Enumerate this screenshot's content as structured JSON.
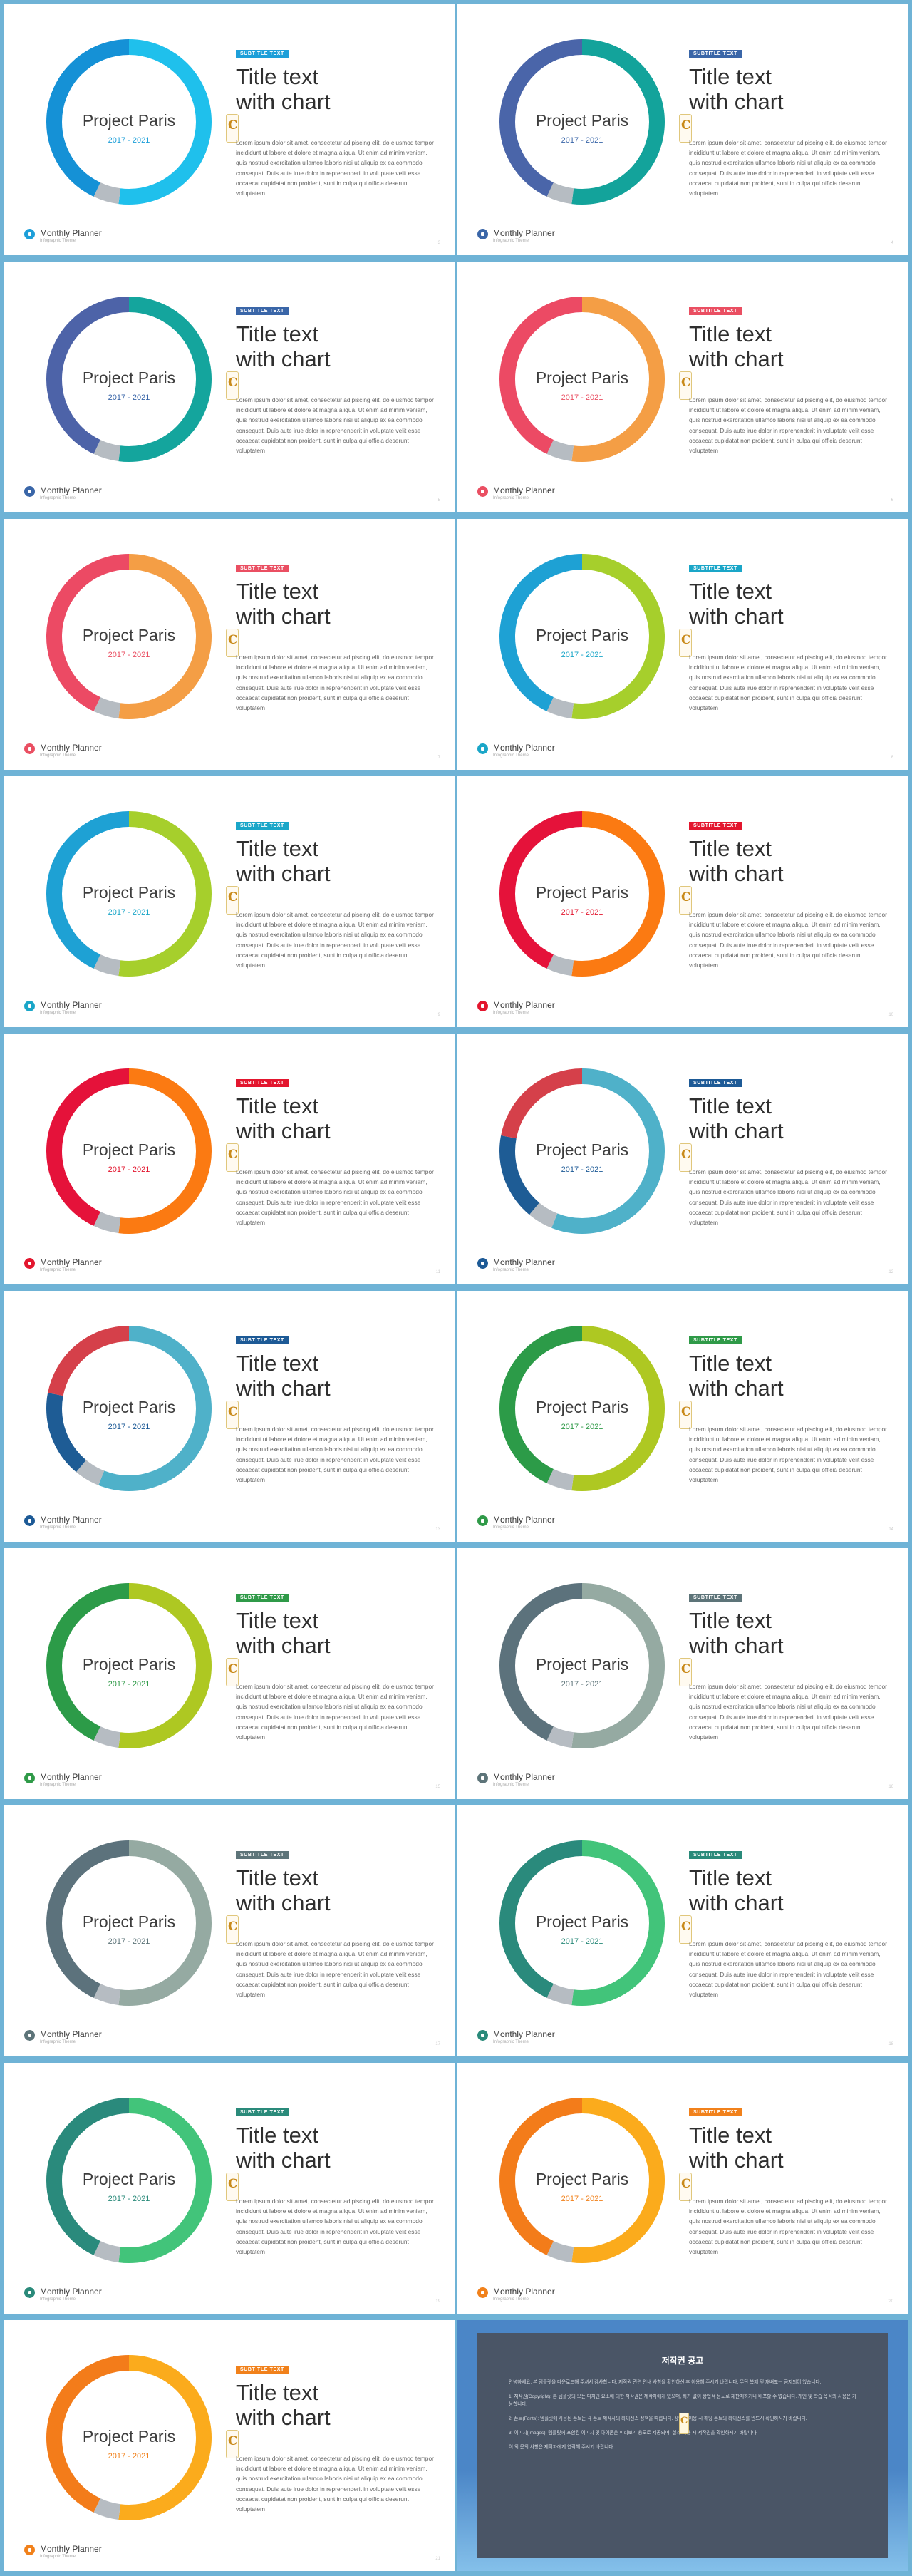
{
  "slides": [
    {
      "page": "3",
      "title_line1": "Title text",
      "title_line2": "with chart",
      "badge": "SUBTITLE TEXT",
      "donut_title": "Project Paris",
      "years": "2017 - 2021",
      "body": "Lorem ipsum dolor sit amet, consectetur adipiscing elit, do eiusmod tempor incididunt ut labore et dolore et magna aliqua. Ut enim ad minim veniam, quis nostrud exercitation ullamco laboris nisi ut aliquip ex ea commodo consequat. Duis aute irue dolor in reprehenderit in voluptate velit esse occaecat cupidatat non proident, sunt in culpa qui officia deserunt voluptatem",
      "footer_name": "Monthly Planner",
      "footer_sub": "Infographic Theme",
      "accent": "#1d9fd9",
      "segments": [
        {
          "frac": 0.52,
          "color": "#1fc0ec"
        },
        {
          "frac": 0.05,
          "color": "#b6bcc2"
        },
        {
          "frac": 0.43,
          "color": "#1591d6"
        }
      ]
    },
    {
      "page": "4",
      "title_line1": "Title text",
      "title_line2": "with chart",
      "badge": "SUBTITLE TEXT",
      "donut_title": "Project Paris",
      "years": "2017 - 2021",
      "body": "Lorem ipsum dolor sit amet, consectetur adipiscing elit, do eiusmod tempor incididunt ut labore et dolore et magna aliqua. Ut enim ad minim veniam, quis nostrud exercitation ullamco laboris nisi ut aliquip ex ea commodo consequat. Duis aute irue dolor in reprehenderit in voluptate velit esse occaecat cupidatat non proident, sunt in culpa qui officia deserunt voluptatem",
      "footer_name": "Monthly Planner",
      "footer_sub": "Infographic Theme",
      "accent": "#3a66a8",
      "segments": [
        {
          "frac": 0.52,
          "color": "#13a39b"
        },
        {
          "frac": 0.05,
          "color": "#b6bcc2"
        },
        {
          "frac": 0.43,
          "color": "#4a65a9"
        }
      ]
    },
    {
      "page": "5",
      "title_line1": "Title text",
      "title_line2": "with chart",
      "badge": "SUBTITLE TEXT",
      "donut_title": "Project Paris",
      "years": "2017 - 2021",
      "body": "Lorem ipsum dolor sit amet, consectetur adipiscing elit, do eiusmod tempor incididunt ut labore et dolore et magna aliqua. Ut enim ad minim veniam, quis nostrud exercitation ullamco laboris nisi ut aliquip ex ea commodo consequat. Duis aute irue dolor in reprehenderit in voluptate velit esse occaecat cupidatat non proident, sunt in culpa qui officia deserunt voluptatem",
      "footer_name": "Monthly Planner",
      "footer_sub": "Infographic Theme",
      "accent": "#3a66a8",
      "segments": [
        {
          "frac": 0.52,
          "color": "#14a59d"
        },
        {
          "frac": 0.05,
          "color": "#b6bcc2"
        },
        {
          "frac": 0.43,
          "color": "#4d63a8"
        }
      ]
    },
    {
      "page": "6",
      "title_line1": "Title text",
      "title_line2": "with chart",
      "badge": "SUBTITLE TEXT",
      "donut_title": "Project Paris",
      "years": "2017 - 2021",
      "body": "Lorem ipsum dolor sit amet, consectetur adipiscing elit, do eiusmod tempor incididunt ut labore et dolore et magna aliqua. Ut enim ad minim veniam, quis nostrud exercitation ullamco laboris nisi ut aliquip ex ea commodo consequat. Duis aute irue dolor in reprehenderit in voluptate velit esse occaecat cupidatat non proident, sunt in culpa qui officia deserunt voluptatem",
      "footer_name": "Monthly Planner",
      "footer_sub": "Infographic Theme",
      "accent": "#ea4f62",
      "segments": [
        {
          "frac": 0.52,
          "color": "#f49e45"
        },
        {
          "frac": 0.05,
          "color": "#b6bcc2"
        },
        {
          "frac": 0.43,
          "color": "#ec4a64"
        }
      ]
    },
    {
      "page": "7",
      "title_line1": "Title text",
      "title_line2": "with chart",
      "badge": "SUBTITLE TEXT",
      "donut_title": "Project Paris",
      "years": "2017 - 2021",
      "body": "Lorem ipsum dolor sit amet, consectetur adipiscing elit, do eiusmod tempor incididunt ut labore et dolore et magna aliqua. Ut enim ad minim veniam, quis nostrud exercitation ullamco laboris nisi ut aliquip ex ea commodo consequat. Duis aute irue dolor in reprehenderit in voluptate velit esse occaecat cupidatat non proident, sunt in culpa qui officia deserunt voluptatem",
      "footer_name": "Monthly Planner",
      "footer_sub": "Infographic Theme",
      "accent": "#ea4f62",
      "segments": [
        {
          "frac": 0.52,
          "color": "#f49e45"
        },
        {
          "frac": 0.05,
          "color": "#b6bcc2"
        },
        {
          "frac": 0.43,
          "color": "#ec4a64"
        }
      ]
    },
    {
      "page": "8",
      "title_line1": "Title text",
      "title_line2": "with chart",
      "badge": "SUBTITLE TEXT",
      "donut_title": "Project Paris",
      "years": "2017 - 2021",
      "body": "Lorem ipsum dolor sit amet, consectetur adipiscing elit, do eiusmod tempor incididunt ut labore et dolore et magna aliqua. Ut enim ad minim veniam, quis nostrud exercitation ullamco laboris nisi ut aliquip ex ea commodo consequat. Duis aute irue dolor in reprehenderit in voluptate velit esse occaecat cupidatat non proident, sunt in culpa qui officia deserunt voluptatem",
      "footer_name": "Monthly Planner",
      "footer_sub": "Infographic Theme",
      "accent": "#1aa6c8",
      "segments": [
        {
          "frac": 0.52,
          "color": "#a6cf2c"
        },
        {
          "frac": 0.05,
          "color": "#b6bcc2"
        },
        {
          "frac": 0.43,
          "color": "#1ea1d4"
        }
      ]
    },
    {
      "page": "9",
      "title_line1": "Title text",
      "title_line2": "with chart",
      "badge": "SUBTITLE TEXT",
      "donut_title": "Project Paris",
      "years": "2017 - 2021",
      "body": "Lorem ipsum dolor sit amet, consectetur adipiscing elit, do eiusmod tempor incididunt ut labore et dolore et magna aliqua. Ut enim ad minim veniam, quis nostrud exercitation ullamco laboris nisi ut aliquip ex ea commodo consequat. Duis aute irue dolor in reprehenderit in voluptate velit esse occaecat cupidatat non proident, sunt in culpa qui officia deserunt voluptatem",
      "footer_name": "Monthly Planner",
      "footer_sub": "Infographic Theme",
      "accent": "#1aa6c8",
      "segments": [
        {
          "frac": 0.52,
          "color": "#a6cf2c"
        },
        {
          "frac": 0.05,
          "color": "#b6bcc2"
        },
        {
          "frac": 0.43,
          "color": "#1ea1d4"
        }
      ]
    },
    {
      "page": "10",
      "title_line1": "Title text",
      "title_line2": "with chart",
      "badge": "SUBTITLE TEXT",
      "donut_title": "Project Paris",
      "years": "2017 - 2021",
      "body": "Lorem ipsum dolor sit amet, consectetur adipiscing elit, do eiusmod tempor incididunt ut labore et dolore et magna aliqua. Ut enim ad minim veniam, quis nostrud exercitation ullamco laboris nisi ut aliquip ex ea commodo consequat. Duis aute irue dolor in reprehenderit in voluptate velit esse occaecat cupidatat non proident, sunt in culpa qui officia deserunt voluptatem",
      "footer_name": "Monthly Planner",
      "footer_sub": "Infographic Theme",
      "accent": "#e3162e",
      "segments": [
        {
          "frac": 0.52,
          "color": "#fb7a12"
        },
        {
          "frac": 0.05,
          "color": "#b6bcc2"
        },
        {
          "frac": 0.43,
          "color": "#e5123a"
        }
      ]
    },
    {
      "page": "11",
      "title_line1": "Title text",
      "title_line2": "with chart",
      "badge": "SUBTITLE TEXT",
      "donut_title": "Project Paris",
      "years": "2017 - 2021",
      "body": "Lorem ipsum dolor sit amet, consectetur adipiscing elit, do eiusmod tempor incididunt ut labore et dolore et magna aliqua. Ut enim ad minim veniam, quis nostrud exercitation ullamco laboris nisi ut aliquip ex ea commodo consequat. Duis aute irue dolor in reprehenderit in voluptate velit esse occaecat cupidatat non proident, sunt in culpa qui officia deserunt voluptatem",
      "footer_name": "Monthly Planner",
      "footer_sub": "Infographic Theme",
      "accent": "#e3162e",
      "segments": [
        {
          "frac": 0.52,
          "color": "#fb7a12"
        },
        {
          "frac": 0.05,
          "color": "#b6bcc2"
        },
        {
          "frac": 0.43,
          "color": "#e5123a"
        }
      ]
    },
    {
      "page": "12",
      "title_line1": "Title text",
      "title_line2": "with chart",
      "badge": "SUBTITLE TEXT",
      "donut_title": "Project Paris",
      "years": "2017 - 2021",
      "body": "Lorem ipsum dolor sit amet, consectetur adipiscing elit, do eiusmod tempor incididunt ut labore et dolore et magna aliqua. Ut enim ad minim veniam, quis nostrud exercitation ullamco laboris nisi ut aliquip ex ea commodo consequat. Duis aute irue dolor in reprehenderit in voluptate velit esse occaecat cupidatat non proident, sunt in culpa qui officia deserunt voluptatem",
      "footer_name": "Monthly Planner",
      "footer_sub": "Infographic Theme",
      "accent": "#1d5a96",
      "segments": [
        {
          "frac": 0.56,
          "color": "#4fb1c9"
        },
        {
          "frac": 0.05,
          "color": "#b6bcc2"
        },
        {
          "frac": 0.17,
          "color": "#1e5c95"
        },
        {
          "frac": 0.22,
          "color": "#d5404a"
        }
      ]
    },
    {
      "page": "13",
      "title_line1": "Title text",
      "title_line2": "with chart",
      "badge": "SUBTITLE TEXT",
      "donut_title": "Project Paris",
      "years": "2017 - 2021",
      "body": "Lorem ipsum dolor sit amet, consectetur adipiscing elit, do eiusmod tempor incididunt ut labore et dolore et magna aliqua. Ut enim ad minim veniam, quis nostrud exercitation ullamco laboris nisi ut aliquip ex ea commodo consequat. Duis aute irue dolor in reprehenderit in voluptate velit esse occaecat cupidatat non proident, sunt in culpa qui officia deserunt voluptatem",
      "footer_name": "Monthly Planner",
      "footer_sub": "Infographic Theme",
      "accent": "#1d5a96",
      "segments": [
        {
          "frac": 0.56,
          "color": "#4fb1c9"
        },
        {
          "frac": 0.05,
          "color": "#b6bcc2"
        },
        {
          "frac": 0.17,
          "color": "#1e5c95"
        },
        {
          "frac": 0.22,
          "color": "#d5404a"
        }
      ]
    },
    {
      "page": "14",
      "title_line1": "Title text",
      "title_line2": "with chart",
      "badge": "SUBTITLE TEXT",
      "donut_title": "Project Paris",
      "years": "2017 - 2021",
      "body": "Lorem ipsum dolor sit amet, consectetur adipiscing elit, do eiusmod tempor incididunt ut labore et dolore et magna aliqua. Ut enim ad minim veniam, quis nostrud exercitation ullamco laboris nisi ut aliquip ex ea commodo consequat. Duis aute irue dolor in reprehenderit in voluptate velit esse occaecat cupidatat non proident, sunt in culpa qui officia deserunt voluptatem",
      "footer_name": "Monthly Planner",
      "footer_sub": "Infographic Theme",
      "accent": "#2f9a48",
      "segments": [
        {
          "frac": 0.52,
          "color": "#aec822"
        },
        {
          "frac": 0.05,
          "color": "#b6bcc2"
        },
        {
          "frac": 0.43,
          "color": "#2c9b48"
        }
      ]
    },
    {
      "page": "15",
      "title_line1": "Title text",
      "title_line2": "with chart",
      "badge": "SUBTITLE TEXT",
      "donut_title": "Project Paris",
      "years": "2017 - 2021",
      "body": "Lorem ipsum dolor sit amet, consectetur adipiscing elit, do eiusmod tempor incididunt ut labore et dolore et magna aliqua. Ut enim ad minim veniam, quis nostrud exercitation ullamco laboris nisi ut aliquip ex ea commodo consequat. Duis aute irue dolor in reprehenderit in voluptate velit esse occaecat cupidatat non proident, sunt in culpa qui officia deserunt voluptatem",
      "footer_name": "Monthly Planner",
      "footer_sub": "Infographic Theme",
      "accent": "#2f9a48",
      "segments": [
        {
          "frac": 0.52,
          "color": "#aec822"
        },
        {
          "frac": 0.05,
          "color": "#b6bcc2"
        },
        {
          "frac": 0.43,
          "color": "#2c9b48"
        }
      ]
    },
    {
      "page": "16",
      "title_line1": "Title text",
      "title_line2": "with chart",
      "badge": "SUBTITLE TEXT",
      "donut_title": "Project Paris",
      "years": "2017 - 2021",
      "body": "Lorem ipsum dolor sit amet, consectetur adipiscing elit, do eiusmod tempor incididunt ut labore et dolore et magna aliqua. Ut enim ad minim veniam, quis nostrud exercitation ullamco laboris nisi ut aliquip ex ea commodo consequat. Duis aute irue dolor in reprehenderit in voluptate velit esse occaecat cupidatat non proident, sunt in culpa qui officia deserunt voluptatem",
      "footer_name": "Monthly Planner",
      "footer_sub": "Infographic Theme",
      "accent": "#5d7479",
      "segments": [
        {
          "frac": 0.52,
          "color": "#95aaa2"
        },
        {
          "frac": 0.05,
          "color": "#b6bcc2"
        },
        {
          "frac": 0.43,
          "color": "#5c727c"
        }
      ]
    },
    {
      "page": "17",
      "title_line1": "Title text",
      "title_line2": "with chart",
      "badge": "SUBTITLE TEXT",
      "donut_title": "Project Paris",
      "years": "2017 - 2021",
      "body": "Lorem ipsum dolor sit amet, consectetur adipiscing elit, do eiusmod tempor incididunt ut labore et dolore et magna aliqua. Ut enim ad minim veniam, quis nostrud exercitation ullamco laboris nisi ut aliquip ex ea commodo consequat. Duis aute irue dolor in reprehenderit in voluptate velit esse occaecat cupidatat non proident, sunt in culpa qui officia deserunt voluptatem",
      "footer_name": "Monthly Planner",
      "footer_sub": "Infographic Theme",
      "accent": "#5d7479",
      "segments": [
        {
          "frac": 0.52,
          "color": "#95aaa2"
        },
        {
          "frac": 0.05,
          "color": "#b6bcc2"
        },
        {
          "frac": 0.43,
          "color": "#5c727c"
        }
      ]
    },
    {
      "page": "18",
      "title_line1": "Title text",
      "title_line2": "with chart",
      "badge": "SUBTITLE TEXT",
      "donut_title": "Project Paris",
      "years": "2017 - 2021",
      "body": "Lorem ipsum dolor sit amet, consectetur adipiscing elit, do eiusmod tempor incididunt ut labore et dolore et magna aliqua. Ut enim ad minim veniam, quis nostrud exercitation ullamco laboris nisi ut aliquip ex ea commodo consequat. Duis aute irue dolor in reprehenderit in voluptate velit esse occaecat cupidatat non proident, sunt in culpa qui officia deserunt voluptatem",
      "footer_name": "Monthly Planner",
      "footer_sub": "Infographic Theme",
      "accent": "#2a8a7a",
      "segments": [
        {
          "frac": 0.52,
          "color": "#42c47a"
        },
        {
          "frac": 0.05,
          "color": "#b6bcc2"
        },
        {
          "frac": 0.43,
          "color": "#2a8a7c"
        }
      ]
    },
    {
      "page": "19",
      "title_line1": "Title text",
      "title_line2": "with chart",
      "badge": "SUBTITLE TEXT",
      "donut_title": "Project Paris",
      "years": "2017 - 2021",
      "body": "Lorem ipsum dolor sit amet, consectetur adipiscing elit, do eiusmod tempor incididunt ut labore et dolore et magna aliqua. Ut enim ad minim veniam, quis nostrud exercitation ullamco laboris nisi ut aliquip ex ea commodo consequat. Duis aute irue dolor in reprehenderit in voluptate velit esse occaecat cupidatat non proident, sunt in culpa qui officia deserunt voluptatem",
      "footer_name": "Monthly Planner",
      "footer_sub": "Infographic Theme",
      "accent": "#2a8a7a",
      "segments": [
        {
          "frac": 0.52,
          "color": "#42c47a"
        },
        {
          "frac": 0.05,
          "color": "#b6bcc2"
        },
        {
          "frac": 0.43,
          "color": "#2a8a7c"
        }
      ]
    },
    {
      "page": "20",
      "title_line1": "Title text",
      "title_line2": "with chart",
      "badge": "SUBTITLE TEXT",
      "donut_title": "Project Paris",
      "years": "2017 - 2021",
      "body": "Lorem ipsum dolor sit amet, consectetur adipiscing elit, do eiusmod tempor incididunt ut labore et dolore et magna aliqua. Ut enim ad minim veniam, quis nostrud exercitation ullamco laboris nisi ut aliquip ex ea commodo consequat. Duis aute irue dolor in reprehenderit in voluptate velit esse occaecat cupidatat non proident, sunt in culpa qui officia deserunt voluptatem",
      "footer_name": "Monthly Planner",
      "footer_sub": "Infographic Theme",
      "accent": "#f1811b",
      "segments": [
        {
          "frac": 0.52,
          "color": "#fbab1c"
        },
        {
          "frac": 0.05,
          "color": "#b6bcc2"
        },
        {
          "frac": 0.43,
          "color": "#f37c1a"
        }
      ]
    },
    {
      "page": "21",
      "title_line1": "Title text",
      "title_line2": "with chart",
      "badge": "SUBTITLE TEXT",
      "donut_title": "Project Paris",
      "years": "2017 - 2021",
      "body": "Lorem ipsum dolor sit amet, consectetur adipiscing elit, do eiusmod tempor incididunt ut labore et dolore et magna aliqua. Ut enim ad minim veniam, quis nostrud exercitation ullamco laboris nisi ut aliquip ex ea commodo consequat. Duis aute irue dolor in reprehenderit in voluptate velit esse occaecat cupidatat non proident, sunt in culpa qui officia deserunt voluptatem",
      "footer_name": "Monthly Planner",
      "footer_sub": "Infographic Theme",
      "accent": "#f1811b",
      "segments": [
        {
          "frac": 0.52,
          "color": "#fbab1c"
        },
        {
          "frac": 0.05,
          "color": "#b6bcc2"
        },
        {
          "frac": 0.43,
          "color": "#f37c1a"
        }
      ]
    }
  ],
  "notice": {
    "title": "저작권 공고",
    "paragraphs": [
      "안녕하세요. 본 템플릿을 다운로드해 주셔서 감사합니다. 저작권 관련 안내 사항을 확인하신 후 이용해 주시기 바랍니다. 무단 복제 및 재배포는 금지되어 있습니다.",
      "1. 저작권(Copyright): 본 템플릿의 모든 디자인 요소에 대한 저작권은 제작자에게 있으며, 허가 없이 상업적 용도로 재판매하거나 배포할 수 없습니다. 개인 및 학습 목적의 사용은 가능합니다.",
      "2. 폰트(Fonts): 템플릿에 사용된 폰트는 각 폰트 제작사의 라이선스 정책을 따릅니다. 상업적 이용 시 해당 폰트의 라이선스를 반드시 확인하시기 바랍니다.",
      "3. 이미지(Images): 템플릿에 포함된 이미지 및 아이콘은 미리보기 용도로 제공되며, 실제 사용 시 저작권을 확인하시기 바랍니다.",
      "이 외 문의 사항은 제작자에게 연락해 주시기 바랍니다."
    ]
  }
}
